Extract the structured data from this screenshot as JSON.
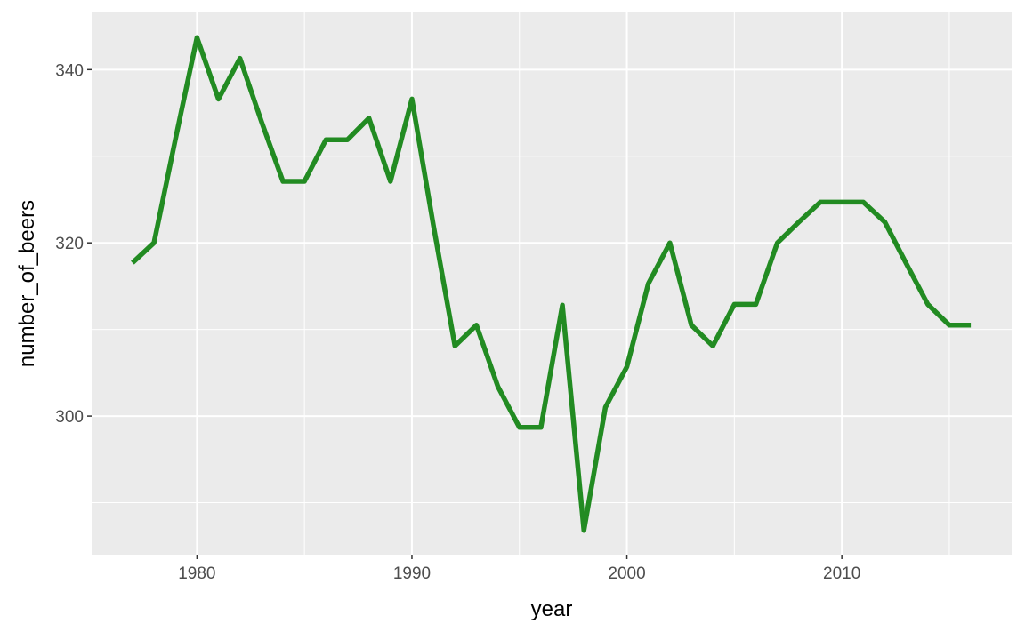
{
  "chart_data": {
    "type": "line",
    "x_label": "year",
    "y_label": "number_of_beers",
    "x": [
      1977,
      1978,
      1979,
      1980,
      1981,
      1982,
      1983,
      1984,
      1985,
      1986,
      1987,
      1988,
      1989,
      1990,
      1991,
      1992,
      1993,
      1994,
      1995,
      1996,
      1997,
      1998,
      1999,
      2000,
      2001,
      2002,
      2003,
      2004,
      2005,
      2006,
      2007,
      2008,
      2009,
      2010,
      2011,
      2012,
      2013,
      2014,
      2015,
      2016
    ],
    "series": [
      {
        "color": "#228B22",
        "values": [
          317.7,
          320,
          332,
          343.7,
          336.6,
          341.3,
          334,
          327.1,
          327.1,
          331.9,
          331.9,
          334.4,
          327.1,
          336.6,
          322,
          308.1,
          310.5,
          303.4,
          298.7,
          298.7,
          312.8,
          286.8,
          301,
          305.7,
          315.3,
          320,
          310.5,
          308.1,
          312.9,
          312.9,
          320,
          322.4,
          324.7,
          324.7,
          324.7,
          322.4,
          317.6,
          312.9,
          310.5,
          310.5
        ]
      }
    ],
    "xlim": [
      1975.1,
      2017.9
    ],
    "xticks": [
      1980,
      1990,
      2000,
      2010
    ],
    "xminor": [
      1985,
      1995,
      2005,
      2015
    ],
    "ylim": [
      284.0,
      346.6
    ],
    "yticks": [
      300,
      320,
      340
    ],
    "yminor": [
      290,
      310,
      330
    ],
    "grid": true
  }
}
